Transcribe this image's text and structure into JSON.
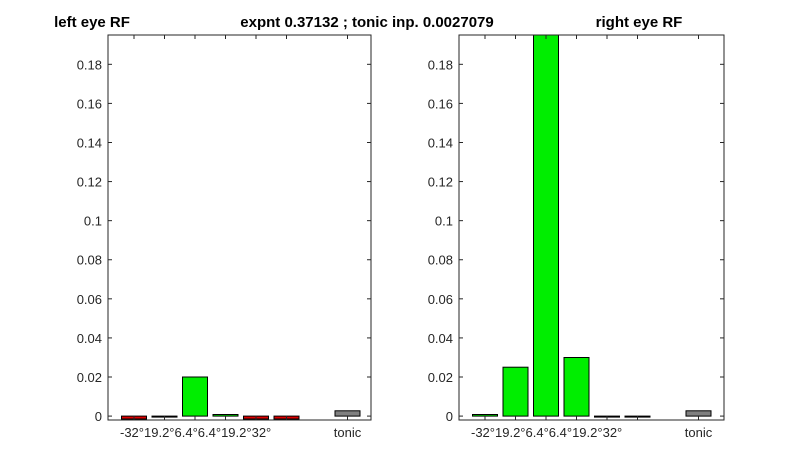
{
  "figure_title": "expnt 0.37132 ; tonic inp. 0.0027079",
  "colors": {
    "positive": "#00ee00",
    "negative": "#dd0000",
    "tonic": "#808080"
  },
  "chart_data": [
    {
      "type": "bar",
      "title": "left eye RF",
      "categories": [
        "-32°",
        "-19.2°",
        "-6.4°",
        "6.4°",
        "19.2°",
        "32°",
        "",
        "tonic"
      ],
      "tick_labels": [
        "-32°",
        "19.2°",
        "6.4°",
        "6.4°",
        "19.2°",
        "32°",
        "tonic"
      ],
      "values": [
        -0.0015,
        0,
        0.02,
        0.0008,
        -0.0015,
        -0.0015,
        null,
        0.0027
      ],
      "colors": [
        "#dd0000",
        "#dd0000",
        "#00ee00",
        "#00ee00",
        "#dd0000",
        "#dd0000",
        null,
        "#808080"
      ],
      "yticks": [
        0,
        0.02,
        0.04,
        0.06,
        0.08,
        0.1,
        0.12,
        0.14,
        0.16,
        0.18
      ],
      "ylim": [
        -0.002,
        0.195
      ],
      "grid": false
    },
    {
      "type": "bar",
      "title": "right eye RF",
      "categories": [
        "-32°",
        "-19.2°",
        "-6.4°",
        "6.4°",
        "19.2°",
        "32°",
        "",
        "tonic"
      ],
      "tick_labels": [
        "-32°",
        "19.2°",
        "6.4°",
        "6.4°",
        "19.2°",
        "32°",
        "tonic"
      ],
      "values": [
        0.0008,
        0.025,
        0.195,
        0.03,
        0,
        0,
        null,
        0.0027
      ],
      "colors": [
        "#00ee00",
        "#00ee00",
        "#00ee00",
        "#00ee00",
        "#00ee00",
        "#00ee00",
        null,
        "#808080"
      ],
      "yticks": [
        0,
        0.02,
        0.04,
        0.06,
        0.08,
        0.1,
        0.12,
        0.14,
        0.16,
        0.18
      ],
      "ylim": [
        -0.002,
        0.195
      ],
      "grid": false
    }
  ]
}
